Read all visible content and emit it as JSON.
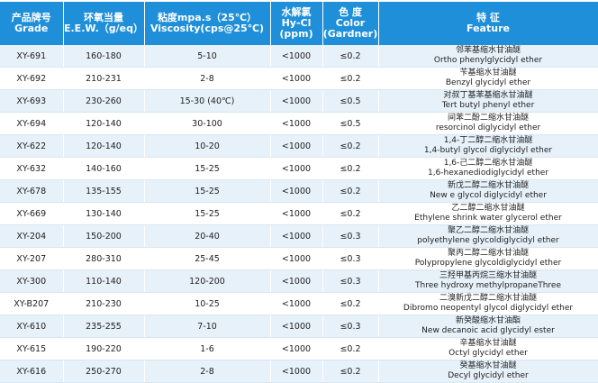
{
  "table": {
    "header": [
      [
        "产品牌号",
        "Grade"
      ],
      [
        "环氧当量",
        "E.E.W.（g/eq）"
      ],
      [
        "粘度mpa.s（25℃）",
        "Viscosity(cps@25℃)"
      ],
      [
        "水解氯",
        "Hy-Cl",
        "(ppm)"
      ],
      [
        "色 度",
        "Color",
        "(Gardner)"
      ],
      [
        "特 征",
        "Feature"
      ]
    ],
    "rows": [
      [
        "XY-691",
        "160-180",
        "5-10",
        "<1000",
        "≤0.2",
        "邻苯基缩水甘油醚",
        "Ortho phenylglycidyl ether"
      ],
      [
        "XY-692",
        "210-231",
        "2-8",
        "<1000",
        "≤0.2",
        "苄基缩水甘油醚",
        "Benzyl glycidyl ether"
      ],
      [
        "XY-693",
        "230-260",
        "15-30 (40℃)",
        "<1000",
        "≤0.5",
        "对叔丁基苯基缩水甘油醚",
        "Tert butyl phenyl ether"
      ],
      [
        "XY-694",
        "120-140",
        "30-100",
        "<1000",
        "≤0.5",
        "间苯二酚二缩水甘油醚",
        "resorcinol diglycidyl ether"
      ],
      [
        "XY-622",
        "120-140",
        "10-20",
        "<1000",
        "≤0.2",
        "1,4-丁二醇二缩水甘油醚",
        "1,4-butyl glycol diglycidyl ether"
      ],
      [
        "XY-632",
        "140-160",
        "15-25",
        "<1000",
        "≤0.2",
        "1,6-己二醇二缩水甘油醚",
        "1,6-hexanediodiglycidyl ether"
      ],
      [
        "XY-678",
        "135-155",
        "15-25",
        "<1000",
        "≤0.2",
        "新戊二醇二缩水甘油醚",
        "New e glycol diglycidyl ether"
      ],
      [
        "XY-669",
        "130-140",
        "15-25",
        "<1000",
        "≤0.2",
        "乙二醇二缩水甘油醚",
        "Ethylene shrink water glycerol ether"
      ],
      [
        "XY-204",
        "150-200",
        "20-40",
        "<1000",
        "≤0.3",
        "聚乙二醇二缩水甘油醚",
        "polyethylene glycoldiglycidyl ether"
      ],
      [
        "XY-207",
        "280-310",
        "25-45",
        "<1000",
        "≤0.3",
        "聚丙二醇二缩水甘油醚",
        "Polypropylene glycoldiglycidyl ether"
      ],
      [
        "XY-300",
        "110-140",
        "120-200",
        "<1000",
        "≤0.3",
        "三羟甲基丙烷三缩水甘油醚",
        "Three hydroxy methylpropaneThree"
      ],
      [
        "XY-B207",
        "210-230",
        "10-25",
        "<1000",
        "≤0.2",
        "二溴新戊二醇二缩水甘油醚",
        "Dibromo neopentyl glycol diglycidyl ether"
      ],
      [
        "XY-610",
        "235-255",
        "7-10",
        "<1000",
        "≤0.3",
        "新癸酸缩水甘油酯",
        "New decanoic acid glycidyl ester"
      ],
      [
        "XY-615",
        "190-220",
        "1-6",
        "<1000",
        "≤0.2",
        "辛基缩水甘油醚",
        "Octyl glycidyl ether"
      ],
      [
        "XY-616",
        "250-270",
        "2-8",
        "<1000",
        "≤0.2",
        "癸基缩水甘油醚",
        "Decyl glycidyl ether"
      ]
    ]
  }
}
